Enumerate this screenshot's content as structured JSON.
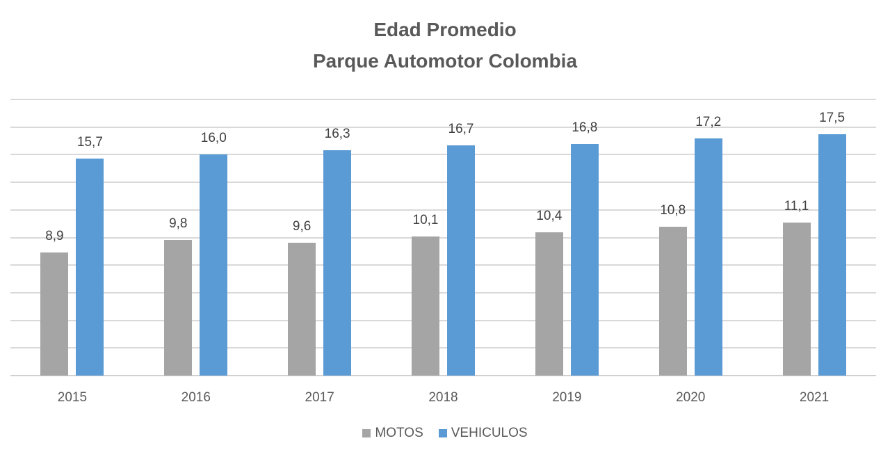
{
  "chart_data": {
    "type": "bar",
    "title": "Edad Promedio\nParque Automotor Colombia",
    "title_lines": [
      "Edad Promedio",
      "Parque Automotor Colombia"
    ],
    "xlabel": "",
    "ylabel": "",
    "categories": [
      "2015",
      "2016",
      "2017",
      "2018",
      "2019",
      "2020",
      "2021"
    ],
    "series": [
      {
        "name": "MOTOS",
        "color": "#a5a5a5",
        "values": [
          8.9,
          9.8,
          9.6,
          10.1,
          10.4,
          10.8,
          11.1
        ],
        "labels": [
          "8,9",
          "9,8",
          "9,6",
          "10,1",
          "10,4",
          "10,8",
          "11,1"
        ]
      },
      {
        "name": "VEHICULOS",
        "color": "#5b9bd5",
        "values": [
          15.7,
          16.0,
          16.3,
          16.7,
          16.8,
          17.2,
          17.5
        ],
        "labels": [
          "15,7",
          "16,0",
          "16,3",
          "16,7",
          "16,8",
          "17,2",
          "17,5"
        ]
      }
    ],
    "ylim": [
      0,
      20
    ],
    "y_gridline_step": 2,
    "y_axis_visible": false,
    "grid": true,
    "legend_position": "bottom",
    "data_labels": true
  }
}
